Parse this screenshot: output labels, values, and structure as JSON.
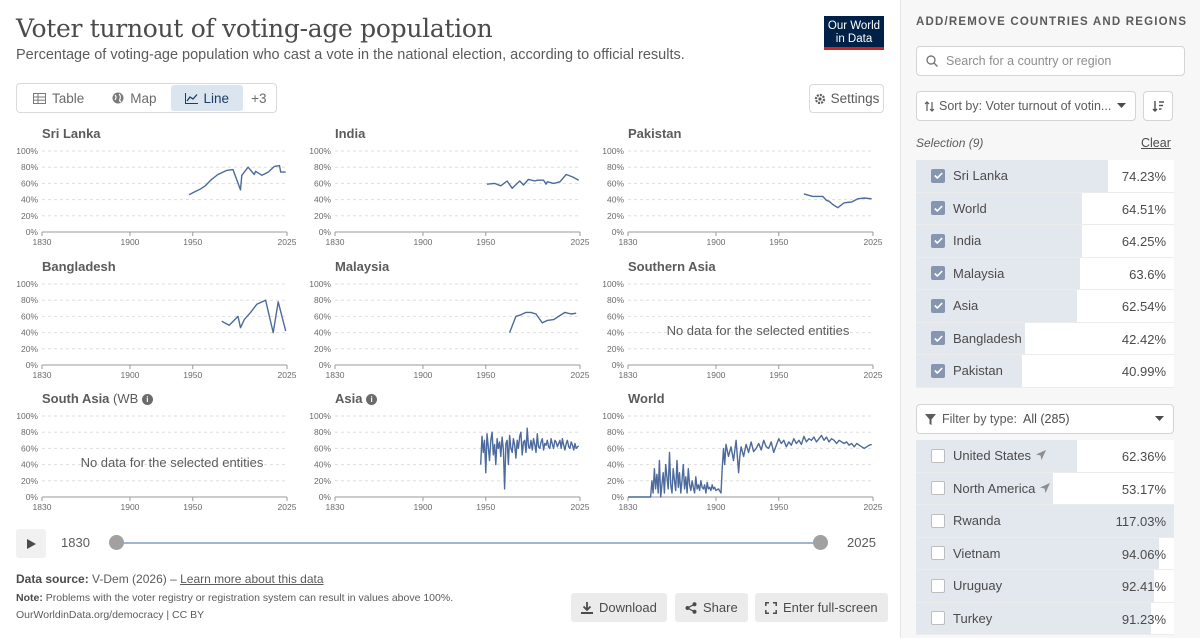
{
  "header": {
    "title": "Voter turnout of voting-age population",
    "subtitle": "Percentage of voting-age population who cast a vote in the national election, according to official results.",
    "logo_line1": "Our World",
    "logo_line2": "in Data"
  },
  "tabs": [
    {
      "label": "Table",
      "icon": "table-icon"
    },
    {
      "label": "Map",
      "icon": "globe-icon"
    },
    {
      "label": "Line",
      "icon": "line-chart-icon",
      "active": true
    },
    {
      "label": "+3"
    }
  ],
  "settings_label": "Settings",
  "no_data_text": "No data for the selected entities",
  "line_color": "#4c6a9c",
  "chart_data": [
    {
      "type": "line",
      "title": "Sri Lanka",
      "xlim": [
        1830,
        2025
      ],
      "ylim": [
        0,
        100
      ],
      "yticks": [
        "0%",
        "20%",
        "40%",
        "60%",
        "80%",
        "100%"
      ],
      "xticks": [
        "1830",
        "1900",
        "1950",
        "2025"
      ],
      "series": [
        {
          "x": [
            1947,
            1952,
            1956,
            1960,
            1965,
            1970,
            1977,
            1982,
            1988,
            1989,
            1994,
            1999,
            2000,
            2005,
            2010,
            2015,
            2019,
            2020,
            2024
          ],
          "y": [
            46,
            50,
            53,
            57,
            65,
            71,
            76,
            77,
            52,
            70,
            80,
            71,
            75,
            70,
            74,
            81,
            82,
            74,
            74
          ]
        }
      ]
    },
    {
      "type": "line",
      "title": "India",
      "xlim": [
        1830,
        2025
      ],
      "ylim": [
        0,
        100
      ],
      "yticks": [
        "0%",
        "20%",
        "40%",
        "60%",
        "80%",
        "100%"
      ],
      "xticks": [
        "1830",
        "1900",
        "1950",
        "2025"
      ],
      "series": [
        {
          "x": [
            1951,
            1957,
            1962,
            1967,
            1971,
            1977,
            1980,
            1984,
            1989,
            1991,
            1996,
            1998,
            1999,
            2004,
            2009,
            2014,
            2019,
            2024
          ],
          "y": [
            59,
            60,
            57,
            63,
            54,
            63,
            58,
            65,
            63,
            64,
            64,
            59,
            62,
            60,
            62,
            71,
            68,
            64
          ]
        }
      ]
    },
    {
      "type": "line",
      "title": "Pakistan",
      "xlim": [
        1830,
        2025
      ],
      "ylim": [
        0,
        100
      ],
      "yticks": [
        "0%",
        "20%",
        "40%",
        "60%",
        "80%",
        "100%"
      ],
      "xticks": [
        "1830",
        "1900",
        "1950",
        "2025"
      ],
      "series": [
        {
          "x": [
            1970,
            1977,
            1985,
            1988,
            1990,
            1993,
            1997,
            2002,
            2008,
            2013,
            2018,
            2024
          ],
          "y": [
            47,
            44,
            44,
            39,
            38,
            34,
            30,
            36,
            37,
            41,
            42,
            41
          ]
        }
      ]
    },
    {
      "type": "line",
      "title": "Bangladesh",
      "xlim": [
        1830,
        2025
      ],
      "ylim": [
        0,
        100
      ],
      "yticks": [
        "0%",
        "20%",
        "40%",
        "60%",
        "80%",
        "100%"
      ],
      "xticks": [
        "1830",
        "1900",
        "1950",
        "2025"
      ],
      "series": [
        {
          "x": [
            1973,
            1979,
            1986,
            1988,
            1991,
            1996,
            2001,
            2008,
            2014,
            2018,
            2024
          ],
          "y": [
            54,
            49,
            60,
            46,
            56,
            65,
            75,
            80,
            40,
            78,
            42
          ]
        }
      ]
    },
    {
      "type": "line",
      "title": "Malaysia",
      "xlim": [
        1830,
        2025
      ],
      "ylim": [
        0,
        100
      ],
      "yticks": [
        "0%",
        "20%",
        "40%",
        "60%",
        "80%",
        "100%"
      ],
      "xticks": [
        "1830",
        "1900",
        "1950",
        "2025"
      ],
      "series": [
        {
          "x": [
            1969,
            1974,
            1978,
            1982,
            1986,
            1990,
            1995,
            1999,
            2004,
            2008,
            2013,
            2018,
            2022
          ],
          "y": [
            40,
            60,
            62,
            65,
            65,
            63,
            52,
            55,
            56,
            60,
            65,
            63,
            64
          ]
        }
      ]
    },
    {
      "type": "line",
      "title": "Southern Asia",
      "xlim": [
        1830,
        2025
      ],
      "ylim": [
        0,
        100
      ],
      "yticks": [
        "0%",
        "20%",
        "40%",
        "60%",
        "80%",
        "100%"
      ],
      "xticks": [
        "1830",
        "1900",
        "1950",
        "2025"
      ],
      "series": []
    },
    {
      "type": "line",
      "title": "South Asia",
      "title_suffix": "(WB",
      "xlim": [
        1830,
        2025
      ],
      "ylim": [
        0,
        100
      ],
      "yticks": [
        "0%",
        "20%",
        "40%",
        "60%",
        "80%",
        "100%"
      ],
      "xticks": [
        "1830",
        "1900",
        "1950",
        "2025"
      ],
      "series": []
    },
    {
      "type": "line",
      "title": "Asia",
      "info": true,
      "xlim": [
        1830,
        2025
      ],
      "ylim": [
        0,
        100
      ],
      "yticks": [
        "0%",
        "20%",
        "40%",
        "60%",
        "80%",
        "100%"
      ],
      "xticks": [
        "1830",
        "1900",
        "1950",
        "2025"
      ],
      "series": [
        {
          "x": [
            1946,
            1947,
            1948,
            1949,
            1950,
            1951,
            1952,
            1953,
            1954,
            1955,
            1956,
            1957,
            1958,
            1959,
            1960,
            1961,
            1962,
            1963,
            1964,
            1965,
            1966,
            1967,
            1968,
            1969,
            1970,
            1971,
            1972,
            1973,
            1974,
            1975,
            1976,
            1977,
            1978,
            1979,
            1980,
            1981,
            1982,
            1983,
            1984,
            1985,
            1986,
            1987,
            1988,
            1989,
            1990,
            1991,
            1992,
            1993,
            1994,
            1995,
            1996,
            1997,
            1998,
            1999,
            2000,
            2001,
            2002,
            2003,
            2004,
            2005,
            2006,
            2007,
            2008,
            2009,
            2010,
            2011,
            2012,
            2013,
            2014,
            2015,
            2016,
            2017,
            2018,
            2019,
            2020,
            2021,
            2022,
            2023,
            2024
          ],
          "y": [
            40,
            75,
            55,
            70,
            30,
            78,
            62,
            45,
            70,
            80,
            52,
            65,
            40,
            72,
            60,
            68,
            50,
            74,
            58,
            10,
            66,
            70,
            40,
            76,
            60,
            55,
            72,
            64,
            48,
            70,
            60,
            75,
            80,
            52,
            68,
            70,
            55,
            85,
            62,
            60,
            70,
            58,
            72,
            65,
            55,
            78,
            62,
            60,
            68,
            72,
            58,
            66,
            64,
            70,
            62,
            60,
            72,
            65,
            60,
            70,
            68,
            62,
            66,
            70,
            60,
            72,
            64,
            58,
            66,
            70,
            62,
            60,
            68,
            64,
            58,
            66,
            60,
            62,
            63
          ]
        }
      ]
    },
    {
      "type": "line",
      "title": "World",
      "xlim": [
        1830,
        2025
      ],
      "ylim": [
        0,
        100
      ],
      "yticks": [
        "0%",
        "20%",
        "40%",
        "60%",
        "80%",
        "100%"
      ],
      "xticks": [
        "1830",
        "1900",
        "1950",
        "2025"
      ],
      "series": [
        {
          "x": [
            1830,
            1840,
            1848,
            1849,
            1850,
            1851,
            1852,
            1853,
            1854,
            1855,
            1856,
            1857,
            1858,
            1859,
            1860,
            1861,
            1862,
            1863,
            1864,
            1865,
            1866,
            1867,
            1868,
            1869,
            1870,
            1871,
            1872,
            1873,
            1874,
            1875,
            1876,
            1877,
            1878,
            1879,
            1880,
            1881,
            1882,
            1883,
            1884,
            1885,
            1886,
            1887,
            1888,
            1889,
            1890,
            1891,
            1892,
            1893,
            1894,
            1895,
            1896,
            1897,
            1898,
            1899,
            1900,
            1902,
            1904,
            1905,
            1906,
            1907,
            1908,
            1910,
            1912,
            1914,
            1916,
            1918,
            1919,
            1920,
            1922,
            1924,
            1926,
            1928,
            1930,
            1932,
            1934,
            1936,
            1938,
            1940,
            1942,
            1944,
            1946,
            1948,
            1950,
            1952,
            1954,
            1956,
            1958,
            1960,
            1962,
            1964,
            1966,
            1968,
            1970,
            1972,
            1974,
            1976,
            1978,
            1980,
            1982,
            1984,
            1986,
            1988,
            1990,
            1992,
            1994,
            1996,
            1998,
            2000,
            2002,
            2004,
            2006,
            2008,
            2010,
            2012,
            2014,
            2016,
            2018,
            2020,
            2022,
            2024
          ],
          "y": [
            0,
            0,
            0,
            20,
            5,
            35,
            10,
            28,
            5,
            45,
            0,
            15,
            30,
            5,
            40,
            25,
            10,
            55,
            15,
            5,
            35,
            20,
            8,
            45,
            12,
            30,
            5,
            20,
            40,
            10,
            25,
            5,
            35,
            15,
            8,
            20,
            12,
            5,
            25,
            10,
            15,
            8,
            20,
            12,
            10,
            15,
            5,
            18,
            10,
            12,
            8,
            15,
            10,
            12,
            8,
            10,
            5,
            35,
            60,
            40,
            65,
            50,
            62,
            45,
            70,
            30,
            50,
            62,
            50,
            65,
            55,
            68,
            56,
            60,
            66,
            58,
            70,
            62,
            60,
            68,
            55,
            64,
            72,
            66,
            70,
            62,
            68,
            64,
            72,
            66,
            70,
            65,
            75,
            68,
            72,
            70,
            74,
            68,
            72,
            76,
            70,
            74,
            68,
            72,
            70,
            66,
            70,
            68,
            66,
            68,
            64,
            66,
            62,
            66,
            64,
            62,
            60,
            62,
            64,
            65
          ]
        }
      ]
    }
  ],
  "timeline": {
    "start": "1830",
    "end": "2025"
  },
  "footer": {
    "source_label": "Data source:",
    "source_value": "V-Dem (2026) –",
    "learn_more": "Learn more about this data",
    "note_label": "Note:",
    "note_text": "Problems with the voter registry or registration system can result in values above 100%.",
    "url_text": "OurWorldinData.org/democracy | CC BY",
    "download": "Download",
    "share": "Share",
    "fullscreen": "Enter full-screen"
  },
  "sidebar": {
    "heading": "ADD/REMOVE COUNTRIES AND REGIONS",
    "search_placeholder": "Search for a country or region",
    "sort_label": "Sort by: Voter turnout of votin...",
    "selection_label": "Selection (9)",
    "clear_label": "Clear",
    "selected": [
      {
        "name": "Sri Lanka",
        "value": "74.23%",
        "pct": 74.23
      },
      {
        "name": "World",
        "value": "64.51%",
        "pct": 64.51
      },
      {
        "name": "India",
        "value": "64.25%",
        "pct": 64.25
      },
      {
        "name": "Malaysia",
        "value": "63.6%",
        "pct": 63.6
      },
      {
        "name": "Asia",
        "value": "62.54%",
        "pct": 62.54
      },
      {
        "name": "Bangladesh",
        "value": "42.42%",
        "pct": 42.42
      },
      {
        "name": "Pakistan",
        "value": "40.99%",
        "pct": 40.99
      }
    ],
    "filter_label": "Filter by type:",
    "filter_value": "All (285)",
    "available": [
      {
        "name": "United States",
        "value": "62.36%",
        "pct": 62.36,
        "pin": true
      },
      {
        "name": "North America",
        "value": "53.17%",
        "pct": 53.17,
        "pin": true
      },
      {
        "name": "Rwanda",
        "value": "117.03%",
        "pct": 117.03
      },
      {
        "name": "Vietnam",
        "value": "94.06%",
        "pct": 94.06
      },
      {
        "name": "Uruguay",
        "value": "92.41%",
        "pct": 92.41
      },
      {
        "name": "Turkey",
        "value": "91.23%",
        "pct": 91.23
      }
    ]
  }
}
